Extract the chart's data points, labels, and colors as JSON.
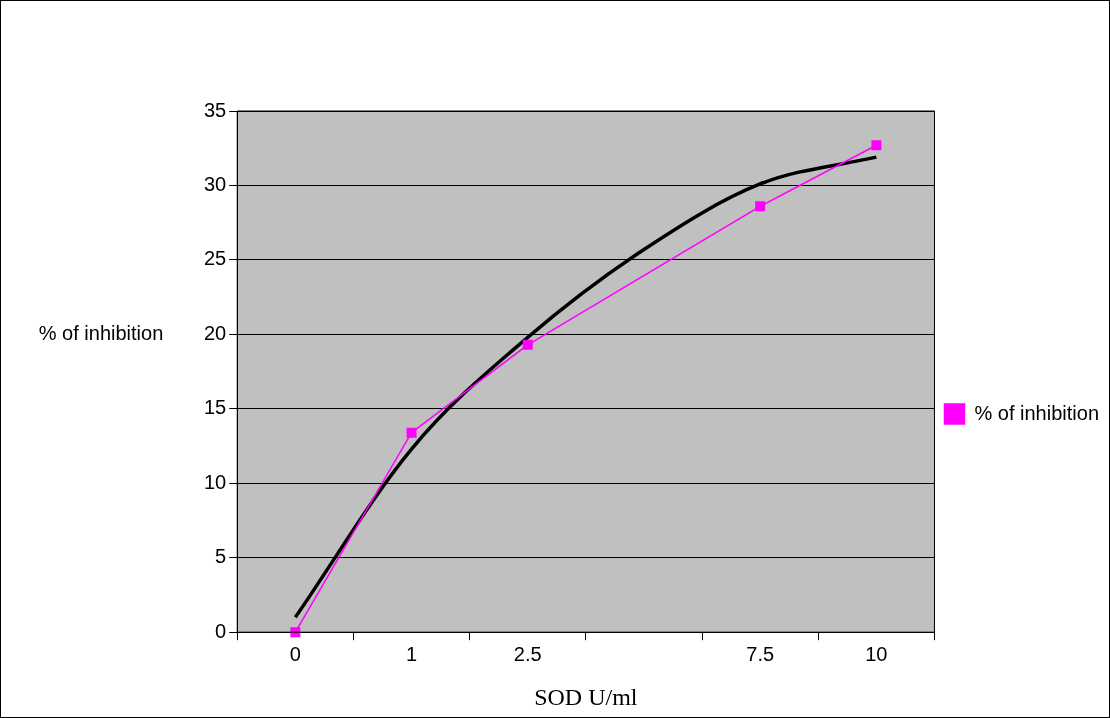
{
  "chart_data": {
    "type": "line",
    "xlabel": "SOD U/ml",
    "ylabel": "% of inhibition",
    "categories": [
      "0",
      "1",
      "2.5",
      null,
      "7.5",
      "10"
    ],
    "series": [
      {
        "name": "% of inhibition",
        "color": "#ff00ff",
        "values": [
          0,
          13.4,
          19.3,
          null,
          28.6,
          32.7
        ],
        "marker": "square",
        "line_style": "solid"
      },
      {
        "color": "#000000",
        "values": [
          1.0,
          12.3,
          19.8,
          25.7,
          30.1,
          31.9
        ],
        "marker": "none",
        "line_style": "solid"
      }
    ],
    "ylim": [
      0,
      35
    ],
    "yticks": [
      0,
      5,
      10,
      15,
      20,
      25,
      30,
      35
    ],
    "grid": "y",
    "legend": "right"
  }
}
